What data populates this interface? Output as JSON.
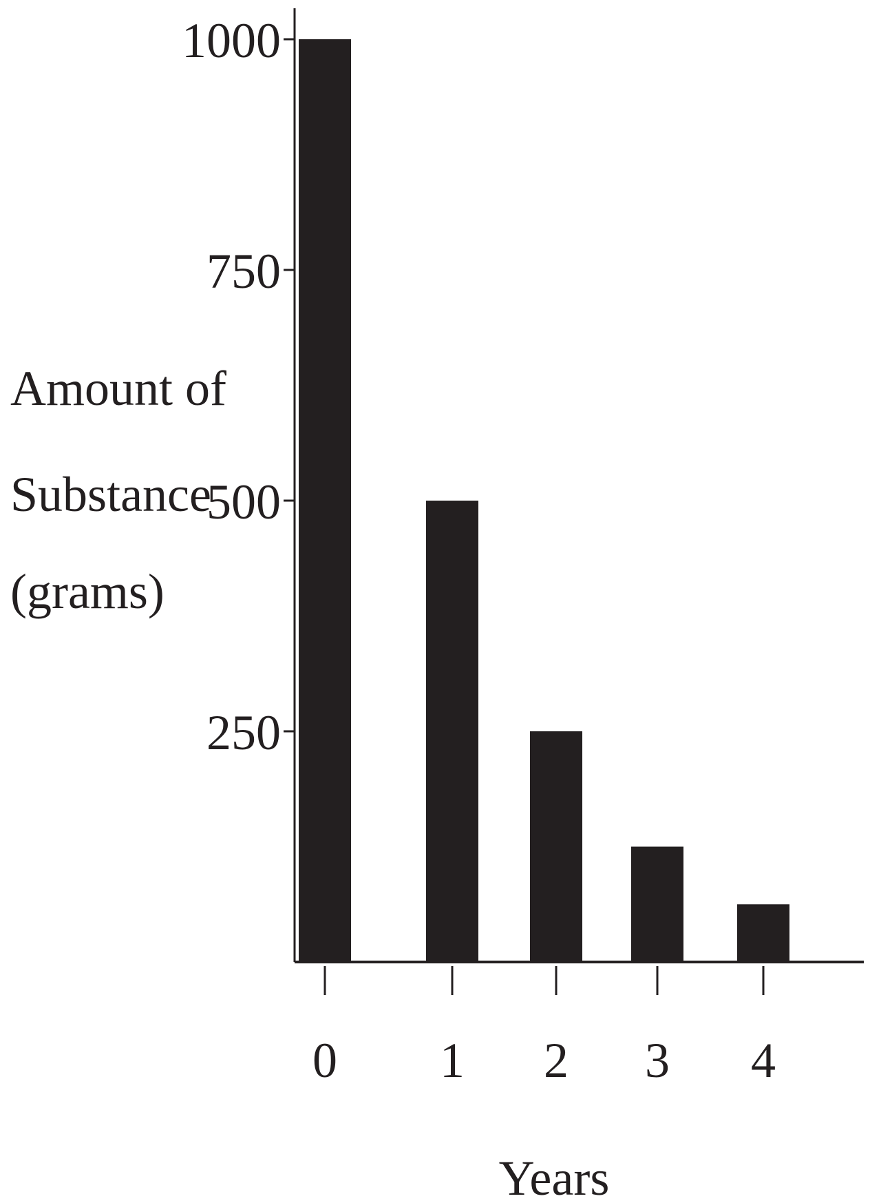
{
  "chart_data": {
    "type": "bar",
    "categories": [
      "0",
      "1",
      "2",
      "3",
      "4"
    ],
    "values": [
      1000,
      500,
      250,
      125,
      62.5
    ],
    "title": "",
    "xlabel": "Years",
    "ylabel_lines": [
      "Amount of",
      "Substance",
      "(grams)"
    ],
    "ylim": [
      0,
      1000
    ],
    "yticks": [
      250,
      500,
      750,
      1000
    ],
    "ytick_labels": [
      "250",
      "500",
      "750",
      "1000"
    ],
    "grid": false,
    "legend": "none",
    "bar_color": "#231f20",
    "axis_color": "#231f20"
  }
}
